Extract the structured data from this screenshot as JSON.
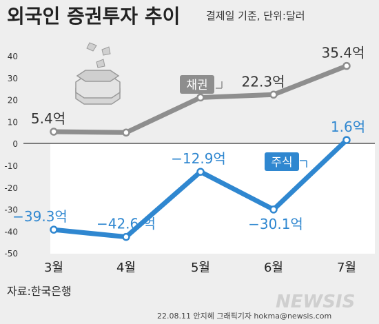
{
  "header": {
    "title": "외국인 증권투자 추이",
    "note": "결제일 기준, 단위:달러"
  },
  "source": "자료:한국은행",
  "credit": "22.08.11 안지혜 그래픽기자 hokma@newsis.com",
  "watermark": "NEWSIS",
  "colors": {
    "background": "#eeeeee",
    "panel": "#ffffff",
    "bonds": "#8e8e8e",
    "stocks": "#2f87d0",
    "stocks_label": "#2f87d0",
    "axis_text": "#333333"
  },
  "chart_data": {
    "type": "line",
    "categories": [
      "3월",
      "4월",
      "5월",
      "6월",
      "7월"
    ],
    "yticks": [
      40,
      30,
      20,
      10,
      0,
      -10,
      -20,
      -30,
      -40,
      -50
    ],
    "ylim": [
      -50,
      45
    ],
    "series": [
      {
        "name": "채권",
        "values": [
          5.4,
          5.0,
          21.0,
          22.3,
          35.4
        ],
        "data_labels": [
          "5.4억",
          "",
          "",
          "22.3억",
          "35.4억"
        ],
        "color": "#8e8e8e"
      },
      {
        "name": "주식",
        "values": [
          -39.3,
          -42.6,
          -12.9,
          -30.1,
          1.6
        ],
        "data_labels": [
          "−39.3억",
          "−42.6 억",
          "−12.9억",
          "−30.1억",
          "1.6억"
        ],
        "color": "#2f87d0"
      }
    ]
  }
}
